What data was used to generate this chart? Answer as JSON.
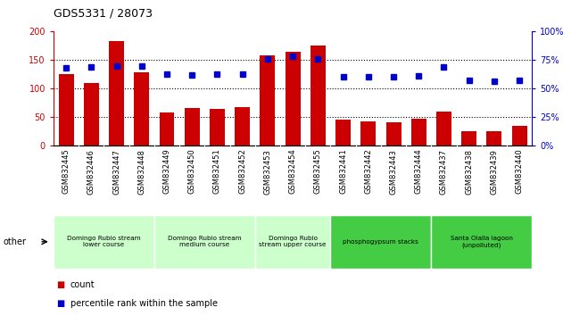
{
  "title": "GDS5331 / 28073",
  "categories": [
    "GSM832445",
    "GSM832446",
    "GSM832447",
    "GSM832448",
    "GSM832449",
    "GSM832450",
    "GSM832451",
    "GSM832452",
    "GSM832453",
    "GSM832454",
    "GSM832455",
    "GSM832441",
    "GSM832442",
    "GSM832443",
    "GSM832444",
    "GSM832437",
    "GSM832438",
    "GSM832439",
    "GSM832440"
  ],
  "counts": [
    125,
    110,
    183,
    128,
    58,
    65,
    64,
    67,
    158,
    165,
    176,
    46,
    42,
    40,
    47,
    60,
    25,
    25,
    34
  ],
  "percentiles": [
    68,
    69,
    70,
    70,
    63,
    62,
    63,
    63,
    76,
    78,
    76,
    60,
    60,
    60,
    61,
    69,
    57,
    56,
    57
  ],
  "bar_color": "#cc0000",
  "dot_color": "#0000cc",
  "ylim_left": [
    0,
    200
  ],
  "ylim_right": [
    0,
    100
  ],
  "yticks_left": [
    0,
    50,
    100,
    150,
    200
  ],
  "yticks_right": [
    0,
    25,
    50,
    75,
    100
  ],
  "grid_lines": [
    50,
    100,
    150
  ],
  "groups": [
    {
      "label": "Domingo Rubio stream\nlower course",
      "start": 0,
      "end": 4,
      "color": "#ccffcc"
    },
    {
      "label": "Domingo Rubio stream\nmedium course",
      "start": 4,
      "end": 8,
      "color": "#ccffcc"
    },
    {
      "label": "Domingo Rubio\nstream upper course",
      "start": 8,
      "end": 11,
      "color": "#ccffcc"
    },
    {
      "label": "phosphogypsum stacks",
      "start": 11,
      "end": 15,
      "color": "#44cc44"
    },
    {
      "label": "Santa Olalla lagoon\n(unpolluted)",
      "start": 15,
      "end": 19,
      "color": "#44cc44"
    }
  ],
  "other_label": "other",
  "legend_count_label": "count",
  "legend_pct_label": "percentile rank within the sample",
  "gray_tick_bg": "#c8c8c8",
  "col_divider_color": "#aaaaaa"
}
